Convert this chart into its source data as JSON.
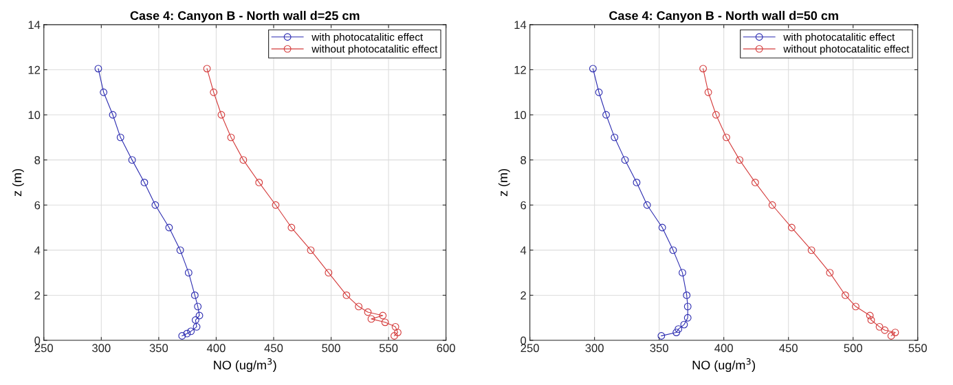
{
  "chart_data": [
    {
      "type": "line",
      "title": "Case 4: Canyon B - North wall d=25 cm",
      "xlabel": "NO (ug/m$^{3}$)",
      "ylabel": "z (m)",
      "xlim": [
        250,
        600
      ],
      "xticks": [
        250,
        300,
        350,
        400,
        450,
        500,
        550,
        600
      ],
      "ylim": [
        0,
        14
      ],
      "yticks": [
        0,
        2,
        4,
        6,
        8,
        10,
        12,
        14
      ],
      "grid": true,
      "legend": "top right",
      "marker": "circle",
      "line_style": "solid",
      "series": [
        {
          "name": "with photocatalitic effect",
          "color": "#2b2bb0",
          "x": [
            297.4,
            302,
            310,
            316.7,
            326.8,
            337.5,
            347,
            359,
            368.7,
            376,
            381.4,
            384,
            385.4,
            382,
            383,
            378,
            374.6,
            370.3
          ],
          "values": [
            12.05,
            11,
            10,
            9,
            8,
            7,
            6,
            5,
            4,
            3,
            2,
            1.5,
            1.1,
            0.9,
            0.6,
            0.4,
            0.3,
            0.2
          ]
        },
        {
          "name": "without photocatalitic effect",
          "color": "#d43a3a",
          "x": [
            392,
            397.8,
            404.5,
            412.9,
            423.6,
            437.3,
            451.8,
            465.5,
            482.3,
            497.8,
            513.4,
            524,
            532,
            545,
            535,
            547,
            556,
            558,
            555
          ],
          "values": [
            12.05,
            11,
            10,
            9,
            8,
            7,
            6,
            5,
            4,
            3,
            2,
            1.5,
            1.25,
            1.1,
            0.95,
            0.8,
            0.6,
            0.35,
            0.2
          ]
        }
      ]
    },
    {
      "type": "line",
      "title": "Case 4: Canyon B - North wall d=50 cm",
      "xlabel": "NO (ug/m$^{3}$)",
      "ylabel": "z (m)",
      "xlim": [
        250,
        550
      ],
      "xticks": [
        250,
        300,
        350,
        400,
        450,
        500,
        550
      ],
      "ylim": [
        0,
        14
      ],
      "yticks": [
        0,
        2,
        4,
        6,
        8,
        10,
        12,
        14
      ],
      "grid": true,
      "legend": "top right",
      "marker": "circle",
      "line_style": "solid",
      "series": [
        {
          "name": "with photocatalitic effect",
          "color": "#2b2bb0",
          "x": [
            298.8,
            303.4,
            309,
            315.5,
            323.6,
            332.6,
            340.7,
            352.4,
            360.8,
            368,
            371.3,
            372.1,
            372.1,
            369.3,
            364.9,
            363.3,
            351.7
          ],
          "values": [
            12.05,
            11,
            10,
            9,
            8,
            7,
            6,
            5,
            4,
            3,
            2,
            1.5,
            1,
            0.7,
            0.5,
            0.35,
            0.2
          ]
        },
        {
          "name": "without photocatalitic effect",
          "color": "#d43a3a",
          "x": [
            384,
            388,
            394,
            402,
            412.2,
            424.3,
            437.5,
            452.5,
            467.8,
            482,
            494,
            502,
            513,
            514,
            520.4,
            524.5,
            532.6,
            529.5
          ],
          "values": [
            12.05,
            11,
            10,
            9,
            8,
            7,
            6,
            5,
            4,
            3,
            2,
            1.5,
            1.1,
            0.9,
            0.6,
            0.45,
            0.35,
            0.2
          ]
        }
      ]
    }
  ]
}
